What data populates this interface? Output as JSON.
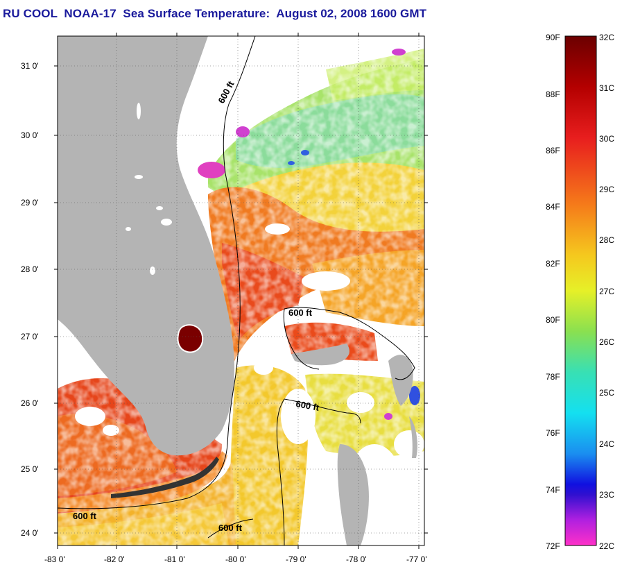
{
  "title": "RU COOL  NOAA-17  Sea Surface Temperature:  August 02, 2008 1600 GMT",
  "map": {
    "lat_ticks": [
      "31 0'",
      "30 0'",
      "29 0'",
      "28 0'",
      "27 0'",
      "26 0'",
      "25 0'",
      "24 0'"
    ],
    "lon_ticks": [
      "-83 0'",
      "-82 0'",
      "-81 0'",
      "-80 0'",
      "-79 0'",
      "-78 0'",
      "-77 0'"
    ],
    "isobath_labels": [
      "600 ft",
      "600 ft",
      "600 ft",
      "600 ft",
      "600 ft"
    ]
  },
  "colorbar": {
    "fahrenheit_labels": [
      "90F",
      "88F",
      "86F",
      "84F",
      "82F",
      "80F",
      "78F",
      "76F",
      "74F",
      "72F"
    ],
    "celsius_labels": [
      "32C",
      "31C",
      "30C",
      "29C",
      "28C",
      "27C",
      "26C",
      "25C",
      "24C",
      "23C",
      "22C"
    ]
  },
  "colors": {
    "title": "#1a1a9c",
    "land": "#b4b4b4",
    "lake": "#7a0000"
  }
}
